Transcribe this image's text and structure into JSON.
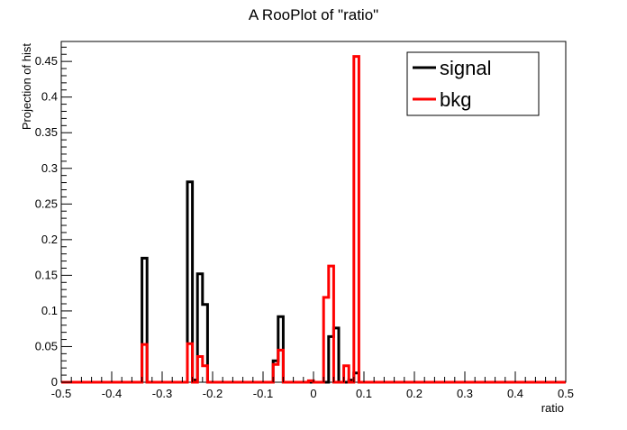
{
  "chart_data": {
    "type": "step-histogram",
    "title": "A RooPlot of \"ratio\"",
    "xlabel": "ratio",
    "ylabel": "Projection of hist",
    "xlim": [
      -0.5,
      0.5
    ],
    "ylim": [
      0,
      0.478
    ],
    "bin_width": 0.01,
    "x_ticks": [
      -0.5,
      -0.4,
      -0.3,
      -0.2,
      -0.1,
      0,
      0.1,
      0.2,
      0.3,
      0.4,
      0.5
    ],
    "x_tick_labels": [
      "-0.5",
      "-0.4",
      "-0.3",
      "-0.2",
      "-0.1",
      "0",
      "0.1",
      "0.2",
      "0.3",
      "0.4",
      "0.5"
    ],
    "y_ticks": [
      0,
      0.05,
      0.1,
      0.15,
      0.2,
      0.25,
      0.3,
      0.35,
      0.4,
      0.45
    ],
    "y_tick_labels": [
      "0",
      "0.05",
      "0.1",
      "0.15",
      "0.2",
      "0.25",
      "0.3",
      "0.35",
      "0.4",
      "0.45"
    ],
    "legend_position": "top-right",
    "series": [
      {
        "name": "signal",
        "color": "#000000",
        "bins": [
          {
            "x0": -0.34,
            "x1": -0.33,
            "y": 0.174
          },
          {
            "x0": -0.25,
            "x1": -0.24,
            "y": 0.281
          },
          {
            "x0": -0.24,
            "x1": -0.23,
            "y": 0.003
          },
          {
            "x0": -0.23,
            "x1": -0.22,
            "y": 0.152
          },
          {
            "x0": -0.22,
            "x1": -0.21,
            "y": 0.109
          },
          {
            "x0": -0.08,
            "x1": -0.07,
            "y": 0.03
          },
          {
            "x0": -0.07,
            "x1": -0.06,
            "y": 0.092
          },
          {
            "x0": 0.03,
            "x1": 0.04,
            "y": 0.064
          },
          {
            "x0": 0.04,
            "x1": 0.05,
            "y": 0.076
          },
          {
            "x0": 0.07,
            "x1": 0.08,
            "y": 0.003
          },
          {
            "x0": 0.08,
            "x1": 0.09,
            "y": 0.013
          }
        ]
      },
      {
        "name": "bkg",
        "color": "#ff0000",
        "bins": [
          {
            "x0": -0.34,
            "x1": -0.33,
            "y": 0.053
          },
          {
            "x0": -0.25,
            "x1": -0.24,
            "y": 0.054
          },
          {
            "x0": -0.23,
            "x1": -0.22,
            "y": 0.036
          },
          {
            "x0": -0.22,
            "x1": -0.21,
            "y": 0.023
          },
          {
            "x0": -0.08,
            "x1": -0.07,
            "y": 0.025
          },
          {
            "x0": -0.07,
            "x1": -0.06,
            "y": 0.045
          },
          {
            "x0": -0.01,
            "x1": 0.0,
            "y": 0.002
          },
          {
            "x0": 0.02,
            "x1": 0.03,
            "y": 0.119
          },
          {
            "x0": 0.03,
            "x1": 0.04,
            "y": 0.163
          },
          {
            "x0": 0.06,
            "x1": 0.07,
            "y": 0.023
          },
          {
            "x0": 0.08,
            "x1": 0.09,
            "y": 0.457
          }
        ]
      }
    ]
  }
}
